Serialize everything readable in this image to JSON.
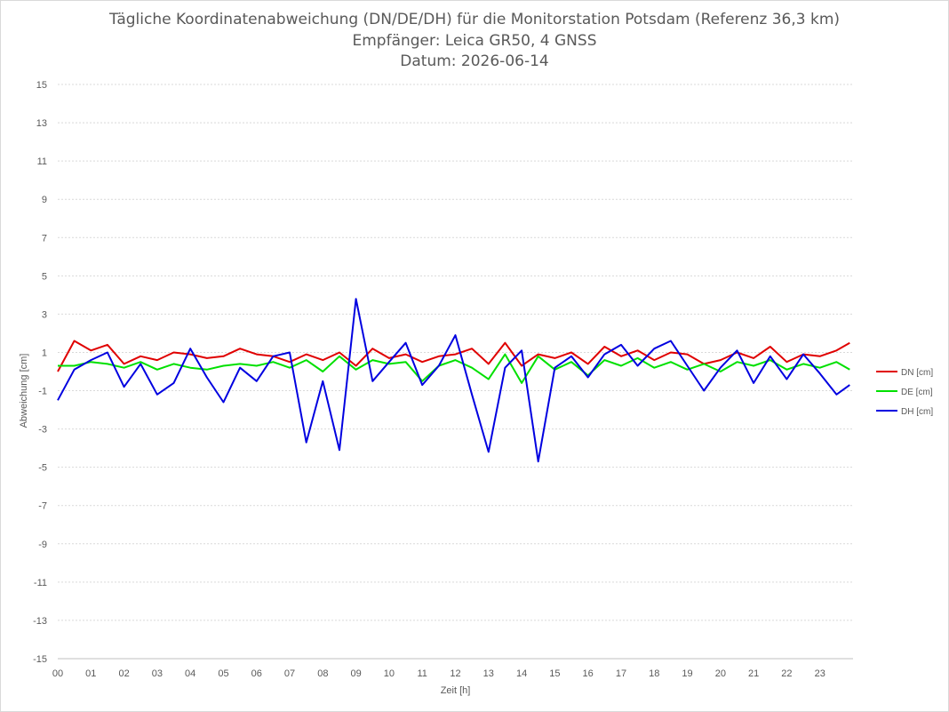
{
  "chart_data": {
    "type": "line",
    "title": "Tägliche Koordinatenabweichung (DN/DE/DH) für die Monitorstation Potsdam (Referenz 36,3 km)",
    "subtitle": "Empfänger: Leica GR50, 4 GNSS",
    "date_label": "Datum: 2026-06-14",
    "xlabel": "Zeit [h]",
    "ylabel": "Abweichung [cm]",
    "xlim": [
      0,
      24
    ],
    "ylim": [
      -15,
      15
    ],
    "x_ticks": [
      "00",
      "01",
      "02",
      "03",
      "04",
      "05",
      "06",
      "07",
      "08",
      "09",
      "10",
      "11",
      "12",
      "13",
      "14",
      "15",
      "16",
      "17",
      "18",
      "19",
      "20",
      "21",
      "22",
      "23"
    ],
    "y_ticks": [
      "15",
      "13",
      "11",
      "9",
      "7",
      "5",
      "3",
      "1",
      "-1",
      "-3",
      "-5",
      "-7",
      "-9",
      "-11",
      "-13",
      "-15"
    ],
    "grid": "horizontal dotted",
    "legend": "right",
    "x_hours": [
      0,
      0.5,
      1,
      1.5,
      2,
      2.5,
      3,
      3.5,
      4,
      4.5,
      5,
      5.5,
      6,
      6.5,
      7,
      7.5,
      8,
      8.5,
      9,
      9.5,
      10,
      10.5,
      11,
      11.5,
      12,
      12.5,
      13,
      13.5,
      14,
      14.5,
      15,
      15.5,
      16,
      16.5,
      17,
      17.5,
      18,
      18.5,
      19,
      19.5,
      20,
      20.5,
      21,
      21.5,
      22,
      22.5,
      23,
      23.5,
      23.9
    ],
    "series": [
      {
        "name": "DN [cm]",
        "color": "#e00000",
        "values": [
          0.0,
          1.6,
          1.1,
          1.4,
          0.4,
          0.8,
          0.6,
          1.0,
          0.9,
          0.7,
          0.8,
          1.2,
          0.9,
          0.8,
          0.5,
          0.9,
          0.6,
          1.0,
          0.3,
          1.2,
          0.7,
          0.9,
          0.5,
          0.8,
          0.9,
          1.2,
          0.4,
          1.5,
          0.3,
          0.9,
          0.7,
          1.0,
          0.4,
          1.3,
          0.8,
          1.1,
          0.6,
          1.0,
          0.9,
          0.4,
          0.6,
          1.0,
          0.7,
          1.3,
          0.5,
          0.9,
          0.8,
          1.1,
          1.5
        ]
      },
      {
        "name": "DE [cm]",
        "color": "#00e000",
        "values": [
          0.3,
          0.3,
          0.5,
          0.4,
          0.2,
          0.5,
          0.1,
          0.4,
          0.2,
          0.1,
          0.3,
          0.4,
          0.3,
          0.5,
          0.2,
          0.6,
          0.0,
          0.8,
          0.1,
          0.6,
          0.4,
          0.5,
          -0.5,
          0.3,
          0.6,
          0.2,
          -0.4,
          0.9,
          -0.6,
          0.8,
          0.1,
          0.5,
          -0.2,
          0.6,
          0.3,
          0.7,
          0.2,
          0.5,
          0.1,
          0.4,
          0.0,
          0.5,
          0.3,
          0.6,
          0.1,
          0.4,
          0.2,
          0.5,
          0.1
        ]
      },
      {
        "name": "DH [cm]",
        "color": "#0000e0",
        "values": [
          -1.5,
          0.1,
          0.6,
          1.0,
          -0.8,
          0.4,
          -1.2,
          -0.6,
          1.2,
          -0.3,
          -1.6,
          0.2,
          -0.5,
          0.8,
          1.0,
          -3.7,
          -0.5,
          -4.1,
          3.8,
          -0.5,
          0.5,
          1.5,
          -0.7,
          0.3,
          1.9,
          -1.2,
          -4.2,
          0.2,
          1.1,
          -4.7,
          0.2,
          0.8,
          -0.3,
          0.9,
          1.4,
          0.3,
          1.2,
          1.6,
          0.3,
          -1.0,
          0.2,
          1.1,
          -0.6,
          0.8,
          -0.4,
          0.9,
          -0.1,
          -1.2,
          -0.7
        ]
      }
    ]
  }
}
